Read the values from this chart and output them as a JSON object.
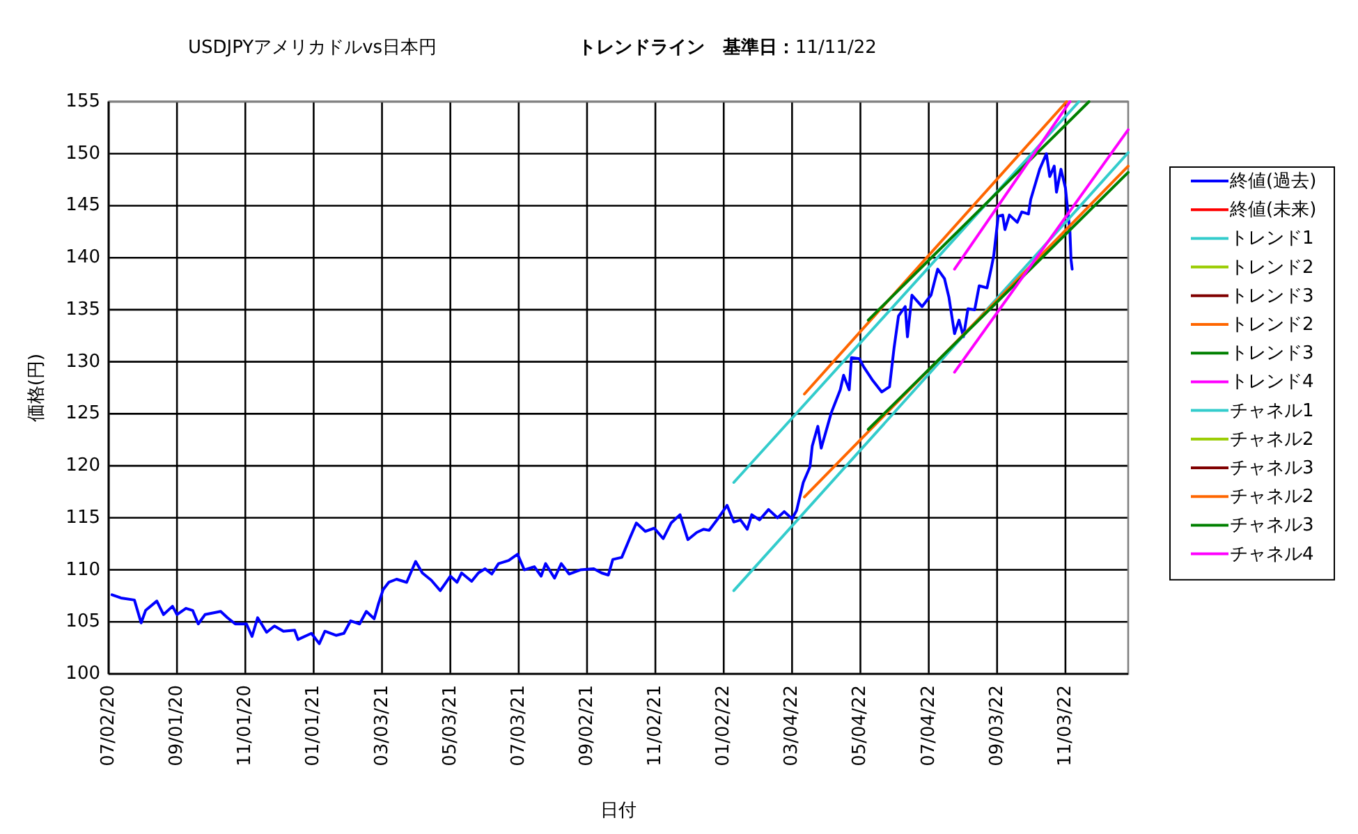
{
  "chart_data": {
    "type": "line",
    "title": "USDJPYアメリカドルvs日本円",
    "subtitle": "**トレンドライン　基準日：**11/11/22",
    "xlabel": "日付",
    "ylabel": "価格(円)",
    "xlim": [
      "2020-07-02",
      "2022-12-29"
    ],
    "ylim": [
      100,
      155
    ],
    "xticks": [
      {
        "value": "2020-07-02",
        "label": "07/02/20"
      },
      {
        "value": "2020-09-01",
        "label": "09/01/20"
      },
      {
        "value": "2020-11-01",
        "label": "11/01/20"
      },
      {
        "value": "2021-01-01",
        "label": "01/01/21"
      },
      {
        "value": "2021-03-03",
        "label": "03/03/21"
      },
      {
        "value": "2021-05-03",
        "label": "05/03/21"
      },
      {
        "value": "2021-07-03",
        "label": "07/03/21"
      },
      {
        "value": "2021-09-02",
        "label": "09/02/21"
      },
      {
        "value": "2021-11-02",
        "label": "11/02/21"
      },
      {
        "value": "2022-01-02",
        "label": "01/02/22"
      },
      {
        "value": "2022-03-04",
        "label": "03/04/22"
      },
      {
        "value": "2022-05-04",
        "label": "05/04/22"
      },
      {
        "value": "2022-07-04",
        "label": "07/04/22"
      },
      {
        "value": "2022-09-03",
        "label": "09/03/22"
      },
      {
        "value": "2022-11-03",
        "label": "11/03/22"
      }
    ],
    "yticks": [
      100,
      105,
      110,
      115,
      120,
      125,
      130,
      135,
      140,
      145,
      150,
      155
    ],
    "grid": true,
    "legend": "right",
    "series": [
      {
        "name": "終値(過去)",
        "color": "#0000ff",
        "x": [
          "2020-07-05",
          "2020-07-13",
          "2020-07-25",
          "2020-07-31",
          "2020-08-04",
          "2020-08-14",
          "2020-08-20",
          "2020-08-28",
          "2020-09-01",
          "2020-09-09",
          "2020-09-15",
          "2020-09-20",
          "2020-09-26",
          "2020-10-10",
          "2020-10-16",
          "2020-10-23",
          "2020-11-02",
          "2020-11-07",
          "2020-11-12",
          "2020-11-20",
          "2020-11-27",
          "2020-12-05",
          "2020-12-15",
          "2020-12-18",
          "2020-12-30",
          "2021-01-06",
          "2021-01-11",
          "2021-01-21",
          "2021-01-28",
          "2021-02-03",
          "2021-02-11",
          "2021-02-17",
          "2021-02-24",
          "2021-02-28",
          "2021-03-04",
          "2021-03-09",
          "2021-03-16",
          "2021-03-25",
          "2021-04-02",
          "2021-04-08",
          "2021-04-16",
          "2021-04-24",
          "2021-05-03",
          "2021-05-09",
          "2021-05-13",
          "2021-05-22",
          "2021-05-28",
          "2021-06-03",
          "2021-06-09",
          "2021-06-15",
          "2021-06-24",
          "2021-07-02",
          "2021-07-08",
          "2021-07-17",
          "2021-07-23",
          "2021-07-27",
          "2021-08-04",
          "2021-08-10",
          "2021-08-17",
          "2021-08-27",
          "2021-09-08",
          "2021-09-15",
          "2021-09-21",
          "2021-09-25",
          "2021-10-03",
          "2021-10-10",
          "2021-10-16",
          "2021-10-24",
          "2021-11-01",
          "2021-11-09",
          "2021-11-16",
          "2021-11-24",
          "2021-12-01",
          "2021-12-09",
          "2021-12-15",
          "2021-12-20",
          "2021-12-27",
          "2022-01-05",
          "2022-01-11",
          "2022-01-17",
          "2022-01-23",
          "2022-01-27",
          "2022-02-03",
          "2022-02-11",
          "2022-02-19",
          "2022-02-25",
          "2022-03-04",
          "2022-03-08",
          "2022-03-14",
          "2022-03-20",
          "2022-03-22",
          "2022-03-27",
          "2022-03-30",
          "2022-04-08",
          "2022-04-16",
          "2022-04-19",
          "2022-04-24",
          "2022-04-26",
          "2022-05-03",
          "2022-05-07",
          "2022-05-15",
          "2022-05-23",
          "2022-05-30",
          "2022-06-03",
          "2022-06-07",
          "2022-06-13",
          "2022-06-15",
          "2022-06-19",
          "2022-06-28",
          "2022-07-06",
          "2022-07-12",
          "2022-07-18",
          "2022-07-22",
          "2022-07-27",
          "2022-07-31",
          "2022-08-04",
          "2022-08-08",
          "2022-08-14",
          "2022-08-18",
          "2022-08-25",
          "2022-08-29",
          "2022-08-31",
          "2022-09-04",
          "2022-09-08",
          "2022-09-10",
          "2022-09-14",
          "2022-09-21",
          "2022-09-25",
          "2022-10-01",
          "2022-10-03",
          "2022-10-11",
          "2022-10-17",
          "2022-10-20",
          "2022-10-24",
          "2022-10-26",
          "2022-10-30",
          "2022-11-03",
          "2022-11-07",
          "2022-11-08",
          "2022-11-09"
        ],
        "values": [
          107.6,
          107.3,
          107.1,
          104.9,
          106.1,
          107.0,
          105.7,
          106.5,
          105.7,
          106.3,
          106.1,
          104.8,
          105.7,
          106.0,
          105.4,
          104.8,
          104.8,
          103.6,
          105.4,
          104.0,
          104.6,
          104.1,
          104.2,
          103.3,
          103.9,
          102.9,
          104.1,
          103.7,
          103.9,
          105.1,
          104.8,
          106.0,
          105.3,
          106.8,
          108.1,
          108.8,
          109.1,
          108.8,
          110.8,
          109.7,
          109.0,
          108.0,
          109.4,
          108.8,
          109.7,
          108.9,
          109.7,
          110.1,
          109.6,
          110.6,
          110.9,
          111.5,
          110.0,
          110.3,
          109.4,
          110.6,
          109.2,
          110.6,
          109.6,
          110.0,
          110.1,
          109.7,
          109.5,
          111.0,
          111.2,
          113.0,
          114.5,
          113.7,
          114.0,
          113.0,
          114.5,
          115.3,
          112.9,
          113.6,
          113.9,
          113.8,
          114.8,
          116.2,
          114.6,
          114.8,
          113.9,
          115.3,
          114.8,
          115.8,
          115.0,
          115.6,
          114.9,
          115.7,
          118.4,
          119.9,
          121.9,
          123.8,
          121.7,
          125.1,
          127.3,
          128.7,
          127.3,
          130.4,
          130.3,
          129.5,
          128.2,
          127.1,
          127.6,
          131.3,
          134.4,
          135.3,
          132.4,
          136.4,
          135.3,
          136.4,
          138.9,
          138.0,
          136.2,
          132.7,
          134.0,
          132.4,
          135.1,
          135.0,
          137.3,
          137.1,
          139.1,
          140.2,
          144.0,
          144.1,
          142.7,
          144.1,
          143.4,
          144.4,
          144.2,
          145.6,
          148.5,
          150.0,
          147.8,
          148.8,
          146.3,
          148.5,
          146.7,
          142.5,
          139.8,
          138.9
        ]
      },
      {
        "name": "終値(未来)",
        "color": "#ff0000"
      },
      {
        "name": "トレンド1",
        "color": "#33cccc",
        "x": [
          "2022-01-11",
          "2022-11-15"
        ],
        "values": [
          118.4,
          155
        ]
      },
      {
        "name": "トレンド2",
        "color": "#99cc00"
      },
      {
        "name": "トレンド3",
        "color": "#800000"
      },
      {
        "name": "トレンド2",
        "color": "#ff6600",
        "x": [
          "2022-03-15",
          "2022-11-04"
        ],
        "values": [
          126.9,
          155
        ]
      },
      {
        "name": "トレンド3",
        "color": "#008000",
        "x": [
          "2022-05-11",
          "2022-11-24"
        ],
        "values": [
          134.0,
          155
        ]
      },
      {
        "name": "トレンド4",
        "color": "#ff00ff",
        "x": [
          "2022-07-27",
          "2022-11-07"
        ],
        "values": [
          138.9,
          155
        ]
      },
      {
        "name": "チャネル1",
        "color": "#33cccc",
        "x": [
          "2022-01-11",
          "2022-12-29"
        ],
        "values": [
          108.0,
          150.1
        ]
      },
      {
        "name": "チャネル2",
        "color": "#99cc00"
      },
      {
        "name": "チャネル3",
        "color": "#800000"
      },
      {
        "name": "チャネル2",
        "color": "#ff6600",
        "x": [
          "2022-03-15",
          "2022-12-29"
        ],
        "values": [
          117.0,
          148.8
        ]
      },
      {
        "name": "チャネル3",
        "color": "#008000",
        "x": [
          "2022-05-11",
          "2022-12-29"
        ],
        "values": [
          123.5,
          148.2
        ]
      },
      {
        "name": "チャネル4",
        "color": "#ff00ff",
        "x": [
          "2022-07-27",
          "2022-12-29"
        ],
        "values": [
          129.0,
          152.3
        ]
      }
    ]
  }
}
